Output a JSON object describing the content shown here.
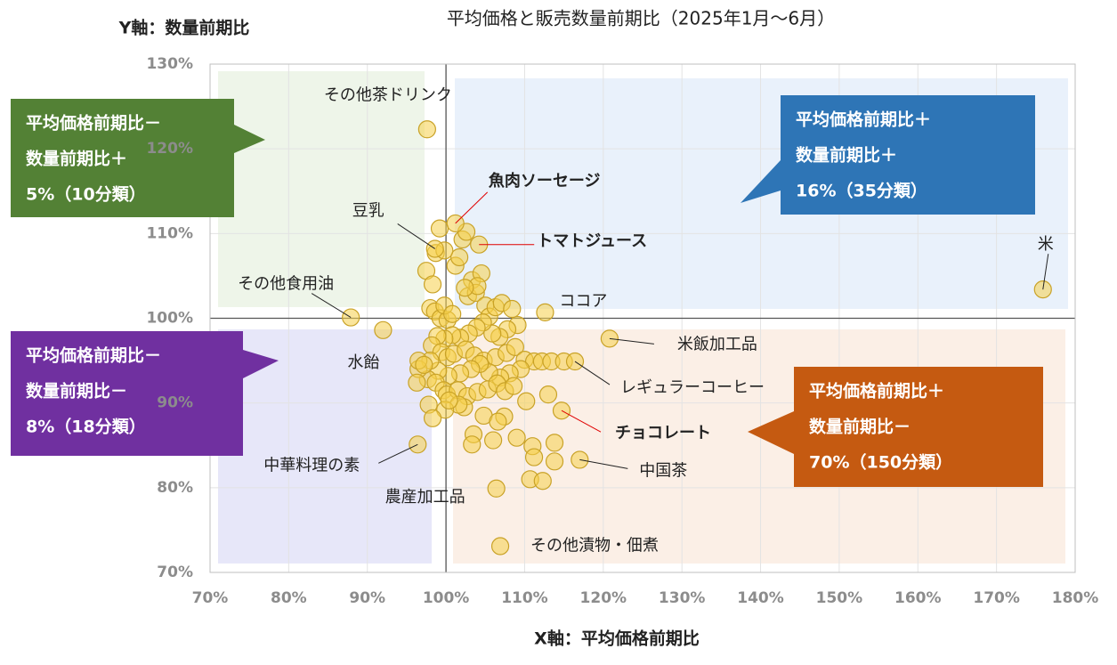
{
  "chart_data": {
    "type": "scatter",
    "title": "平均価格と販売数量前期比（2025年1月～6月）",
    "x_label": "X軸：平均価格前期比",
    "y_label": "Y軸：数量前期比",
    "xlim": [
      70,
      180
    ],
    "ylim": [
      70,
      130
    ],
    "xticks": [
      {
        "value": 70,
        "label": "70%"
      },
      {
        "value": 80,
        "label": "80%"
      },
      {
        "value": 90,
        "label": "90%"
      },
      {
        "value": 100,
        "label": "100%"
      },
      {
        "value": 110,
        "label": "110%"
      },
      {
        "value": 120,
        "label": "120%"
      },
      {
        "value": 130,
        "label": "130%"
      },
      {
        "value": 140,
        "label": "140%"
      },
      {
        "value": 150,
        "label": "150%"
      },
      {
        "value": 160,
        "label": "160%"
      },
      {
        "value": 170,
        "label": "170%"
      },
      {
        "value": 180,
        "label": "180%"
      }
    ],
    "yticks": [
      {
        "value": 70,
        "label": "70%"
      },
      {
        "value": 80,
        "label": "80%"
      },
      {
        "value": 90,
        "label": "90%"
      },
      {
        "value": 100,
        "label": "100%"
      },
      {
        "value": 110,
        "label": "110%"
      },
      {
        "value": 120,
        "label": "120%"
      },
      {
        "value": 130,
        "label": "130%"
      }
    ],
    "grid": true,
    "reference_lines": {
      "x": 100,
      "y": 100
    },
    "series": [
      {
        "color": "#f5cf4a",
        "x": [
          97.6,
          101.2,
          104.2,
          98.6,
          87.9,
          112.6,
          175.9,
          120.8,
          116.4,
          114.7,
          117.0,
          92.0,
          96.4,
          106.4,
          106.9
        ],
        "y": [
          122.3,
          111.2,
          108.7,
          108.2,
          100.1,
          100.7,
          103.4,
          97.6,
          94.9,
          89.1,
          83.3,
          98.6,
          85.1,
          79.9,
          73.1
        ],
        "labels": [
          "その他茶ドリンク",
          "魚肉ソーセージ",
          "トマトジュース",
          "豆乳",
          "その他食用油",
          "ココア",
          "米",
          "米飯加工品",
          "レギュラーコーヒー",
          "チョコレート",
          "中国茶",
          "水飴",
          "中華料理の素",
          "農産加工品",
          "その他漬物・佃煮"
        ],
        "label_colors": [
          "#222222",
          "#e00000",
          "#e00000",
          "#222222",
          "#222222",
          "#222222",
          "#222222",
          "#222222",
          "#222222",
          "#e00000",
          "#222222",
          "#222222",
          "#222222",
          "#222222",
          "#222222"
        ]
      },
      {
        "color": "#f5cf4a",
        "x": [
          97.5,
          98.3,
          98.0,
          98.6,
          99.3,
          100.2,
          99.8,
          100.8,
          101.2,
          101.7,
          102.1,
          102.6,
          103.3,
          102.8,
          103.8,
          104.5,
          104.0,
          105.0,
          105.5,
          106.3,
          107.1,
          108.4,
          109.1,
          107.8,
          106.8,
          105.9,
          104.7,
          103.9,
          102.9,
          101.8,
          100.8,
          99.8,
          98.9,
          98.2,
          99.4,
          100.2,
          101.0,
          102.5,
          103.6,
          104.8,
          106.3,
          107.7,
          108.8,
          110.0,
          111.2,
          112.2,
          113.4,
          115.0,
          109.5,
          108.1,
          106.9,
          105.5,
          104.3,
          103.2,
          101.8,
          100.3,
          99.0,
          98.0,
          97.7,
          98.7,
          99.7,
          100.1,
          101.5,
          102.7,
          104.0,
          105.3,
          106.5,
          107.5,
          108.6,
          110.2,
          113.0,
          102.3,
          101.6,
          99.9,
          100.4,
          104.8,
          107.4,
          106.6,
          103.5,
          103.3,
          106.0,
          109.0,
          111.0,
          113.8,
          111.2,
          113.8,
          110.7,
          112.3,
          96.5,
          96.5,
          96.3,
          97.8,
          97.2,
          98.3,
          99.2,
          98.7,
          99.8,
          102.4
        ],
        "y": [
          105.6,
          104.0,
          101.2,
          100.8,
          100.0,
          99.8,
          101.5,
          100.5,
          106.2,
          107.2,
          109.3,
          110.2,
          104.5,
          102.6,
          103.0,
          105.3,
          103.8,
          101.5,
          100.2,
          101.3,
          101.8,
          101.1,
          99.2,
          98.7,
          97.8,
          98.2,
          99.5,
          98.9,
          98.2,
          97.7,
          98.0,
          97.6,
          97.9,
          96.8,
          96.0,
          95.4,
          95.8,
          96.3,
          95.6,
          95.0,
          95.4,
          95.9,
          96.6,
          95.1,
          94.9,
          94.9,
          94.9,
          94.9,
          94.0,
          93.5,
          93.0,
          93.6,
          94.6,
          94.0,
          93.5,
          93.2,
          93.8,
          95.0,
          92.8,
          92.4,
          91.5,
          91.0,
          91.5,
          90.8,
          91.3,
          91.6,
          92.3,
          91.4,
          92.0,
          90.2,
          91.0,
          89.5,
          89.8,
          89.2,
          90.3,
          88.5,
          88.4,
          87.8,
          86.3,
          85.1,
          85.6,
          85.9,
          84.9,
          85.3,
          83.6,
          83.1,
          81.0,
          80.8,
          94.0,
          95.0,
          92.4,
          89.8,
          94.5,
          88.2,
          110.6,
          107.7,
          108.0,
          103.6
        ]
      }
    ],
    "annotations": [
      [
        "平均価格前期比－",
        "数量前期比＋",
        "5%（10分類）"
      ],
      [
        "平均価格前期比＋",
        "数量前期比＋",
        "16%（35分類）"
      ],
      [
        "平均価格前期比－",
        "数量前期比－",
        "8%（18分類）"
      ],
      [
        "平均価格前期比＋",
        "数量前期比－",
        "70%（150分類）"
      ]
    ]
  }
}
